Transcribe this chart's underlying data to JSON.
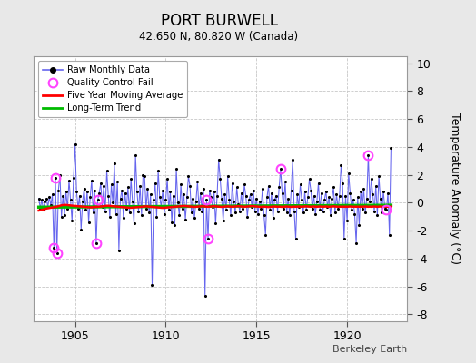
{
  "title": "PORT BURWELL",
  "subtitle": "42.650 N, 80.820 W (Canada)",
  "ylabel": "Temperature Anomaly (°C)",
  "attribution": "Berkeley Earth",
  "ylim": [
    -8.5,
    10.5
  ],
  "xlim": [
    1902.7,
    1923.3
  ],
  "xticks": [
    1905,
    1910,
    1915,
    1920
  ],
  "yticks": [
    -8,
    -6,
    -4,
    -2,
    0,
    2,
    4,
    6,
    8,
    10
  ],
  "bg_color": "#e8e8e8",
  "plot_bg_color": "#ffffff",
  "grid_color": "#c8c8c8",
  "raw_line_color": "#6666ee",
  "raw_dot_color": "#000000",
  "ma_color": "#ff0000",
  "trend_color": "#00bb00",
  "qc_color": "#ff44ff",
  "start_year": 1903,
  "n_years": 20,
  "seed": 17,
  "raw_data": [
    0.3,
    -0.4,
    0.2,
    -0.5,
    0.1,
    0.3,
    -0.3,
    0.4,
    -0.2,
    0.6,
    -3.2,
    1.8,
    -3.6,
    0.9,
    2.0,
    -1.0,
    0.5,
    -0.9,
    0.8,
    -0.4,
    1.6,
    0.2,
    -1.3,
    1.8,
    4.2,
    0.8,
    -0.4,
    0.5,
    -1.9,
    0.1,
    1.0,
    -0.5,
    0.8,
    -1.4,
    0.4,
    1.6,
    -0.7,
    0.9,
    -2.9,
    0.2,
    0.7,
    1.4,
    -0.3,
    1.2,
    -0.6,
    2.3,
    0.5,
    -1.0,
    1.3,
    0.0,
    2.8,
    -0.8,
    1.5,
    -3.4,
    0.3,
    0.9,
    -1.1,
    0.7,
    -0.4,
    1.1,
    -0.7,
    1.7,
    0.1,
    -1.5,
    3.4,
    0.8,
    -0.6,
    1.2,
    -0.9,
    2.0,
    1.9,
    -0.4,
    1.0,
    -0.7,
    0.6,
    -5.9,
    0.2,
    1.4,
    -1.0,
    2.3,
    0.4,
    -0.3,
    0.9,
    -0.8,
    0.2,
    1.7,
    -0.5,
    0.8,
    -1.4,
    0.5,
    -1.6,
    2.4,
    0.0,
    -0.9,
    1.3,
    -0.4,
    0.6,
    -1.2,
    0.4,
    1.9,
    1.2,
    -0.7,
    0.3,
    -1.1,
    0.1,
    1.5,
    -0.4,
    0.7,
    -0.6,
    1.0,
    -6.7,
    0.2,
    -2.6,
    0.9,
    0.4,
    -0.3,
    0.8,
    -1.5,
    0.5,
    3.1,
    1.7,
    0.3,
    -1.3,
    0.6,
    -0.5,
    1.9,
    0.2,
    -0.9,
    1.4,
    0.1,
    -0.7,
    1.1,
    -0.1,
    -0.6,
    0.7,
    -0.4,
    1.3,
    0.5,
    -1.0,
    0.2,
    0.6,
    -0.3,
    0.9,
    -0.6,
    0.3,
    -0.8,
    0.1,
    -0.4,
    1.0,
    -0.9,
    -2.3,
    0.4,
    1.2,
    -0.5,
    0.7,
    -1.1,
    0.2,
    0.5,
    -0.6,
    1.1,
    2.4,
    0.7,
    -0.4,
    1.5,
    -0.7,
    0.3,
    -0.9,
    0.9,
    3.1,
    -0.6,
    -2.6,
    0.6,
    -0.3,
    1.3,
    0.2,
    -0.7,
    0.8,
    -0.5,
    0.4,
    1.7,
    0.9,
    -0.4,
    0.5,
    -0.8,
    0.1,
    1.4,
    -0.5,
    0.7,
    -0.6,
    0.2,
    0.8,
    -0.3,
    0.4,
    -0.9,
    0.3,
    1.1,
    -0.7,
    0.6,
    -0.4,
    0.5,
    2.7,
    1.4,
    -2.6,
    0.5,
    -1.3,
    2.1,
    0.7,
    -0.5,
    0.2,
    -0.8,
    -2.9,
    0.4,
    -1.6,
    0.8,
    -0.4,
    1.0,
    -0.7,
    0.3,
    3.4,
    0.1,
    1.7,
    0.6,
    -0.6,
    1.2,
    -0.9,
    1.9,
    0.3,
    -0.7,
    0.8,
    -0.4,
    -0.5,
    0.7,
    -2.3,
    3.9
  ],
  "qc_indices": [
    10,
    11,
    12,
    38,
    39,
    111,
    112,
    160,
    218,
    230
  ],
  "ma_values": [
    -0.28,
    -0.26,
    -0.23,
    -0.2,
    -0.17,
    -0.14,
    -0.12,
    -0.1,
    -0.08,
    -0.06,
    -0.04,
    -0.02,
    0.0,
    0.03,
    0.06,
    0.09,
    0.11,
    0.12,
    0.12,
    0.11,
    0.1,
    0.08,
    0.07,
    0.06,
    0.05,
    0.04,
    0.03,
    0.02,
    0.01,
    0.0,
    -0.01,
    -0.02,
    -0.03,
    -0.04,
    -0.05,
    -0.05,
    -0.04,
    -0.03,
    -0.02,
    -0.01,
    0.0,
    0.01,
    0.02,
    0.03,
    0.05,
    0.06,
    0.06,
    0.05,
    0.04,
    0.03,
    0.02,
    0.01,
    0.0,
    -0.01,
    -0.02,
    -0.03,
    -0.04,
    -0.05,
    -0.06,
    -0.07,
    -0.08,
    -0.08,
    -0.07,
    -0.06,
    -0.05,
    -0.04,
    -0.03,
    -0.02,
    -0.01,
    0.0,
    0.01,
    0.02,
    0.01,
    0.0,
    -0.01,
    -0.02,
    -0.03,
    -0.04,
    -0.05,
    -0.06,
    -0.07,
    -0.08,
    -0.09,
    -0.08,
    -0.07,
    -0.06,
    -0.05,
    -0.04,
    -0.03,
    -0.02,
    -0.01,
    0.0,
    0.01,
    0.02,
    0.03,
    0.04,
    0.05,
    0.04,
    0.03,
    0.02,
    0.01,
    0.0,
    -0.01,
    -0.02,
    -0.01,
    0.0,
    0.01,
    0.02,
    0.03,
    0.02,
    0.01,
    0.0,
    -0.01,
    0.0,
    0.01,
    0.02,
    0.03,
    0.02,
    0.01,
    0.0,
    -0.01,
    -0.02,
    -0.01,
    0.0,
    0.01,
    0.02,
    0.01,
    0.0,
    -0.01,
    0.0,
    0.01,
    0.02,
    0.03,
    0.02,
    0.01,
    0.0,
    -0.01,
    0.0,
    0.01,
    0.02,
    0.03,
    0.04,
    0.03,
    0.02,
    0.01,
    0.0,
    -0.01,
    -0.02,
    -0.01,
    0.0,
    -0.01,
    -0.02,
    -0.03,
    -0.02,
    -0.01,
    0.0,
    0.01,
    0.0,
    -0.01,
    0.0,
    -0.01,
    -0.02,
    -0.01,
    0.0,
    0.01,
    0.0,
    -0.01,
    -0.02,
    -0.01,
    0.0,
    -0.01,
    0.0,
    0.01,
    0.0,
    -0.01,
    0.0,
    0.01,
    0.02,
    0.01,
    0.0,
    -0.01,
    0.0,
    0.01,
    0.0,
    -0.01,
    0.0,
    0.01,
    0.0,
    -0.01,
    0.0,
    0.01,
    0.0,
    -0.01,
    0.0,
    0.01,
    0.02,
    0.01,
    0.0,
    -0.01,
    0.0,
    -0.01,
    0.0,
    -0.01,
    0.0,
    -0.01,
    0.0,
    0.01,
    0.0,
    -0.01,
    0.0,
    -0.01,
    0.0,
    -0.01,
    0.0,
    -0.01,
    0.0,
    0.01,
    0.0,
    -0.01,
    0.0,
    -0.01,
    0.0,
    0.01,
    0.0,
    -0.01,
    0.0,
    0.01,
    0.0,
    -0.01,
    0.0,
    -0.01,
    0.0,
    -0.01,
    0.0
  ],
  "trend_y0": -0.32,
  "trend_y1": -0.18
}
